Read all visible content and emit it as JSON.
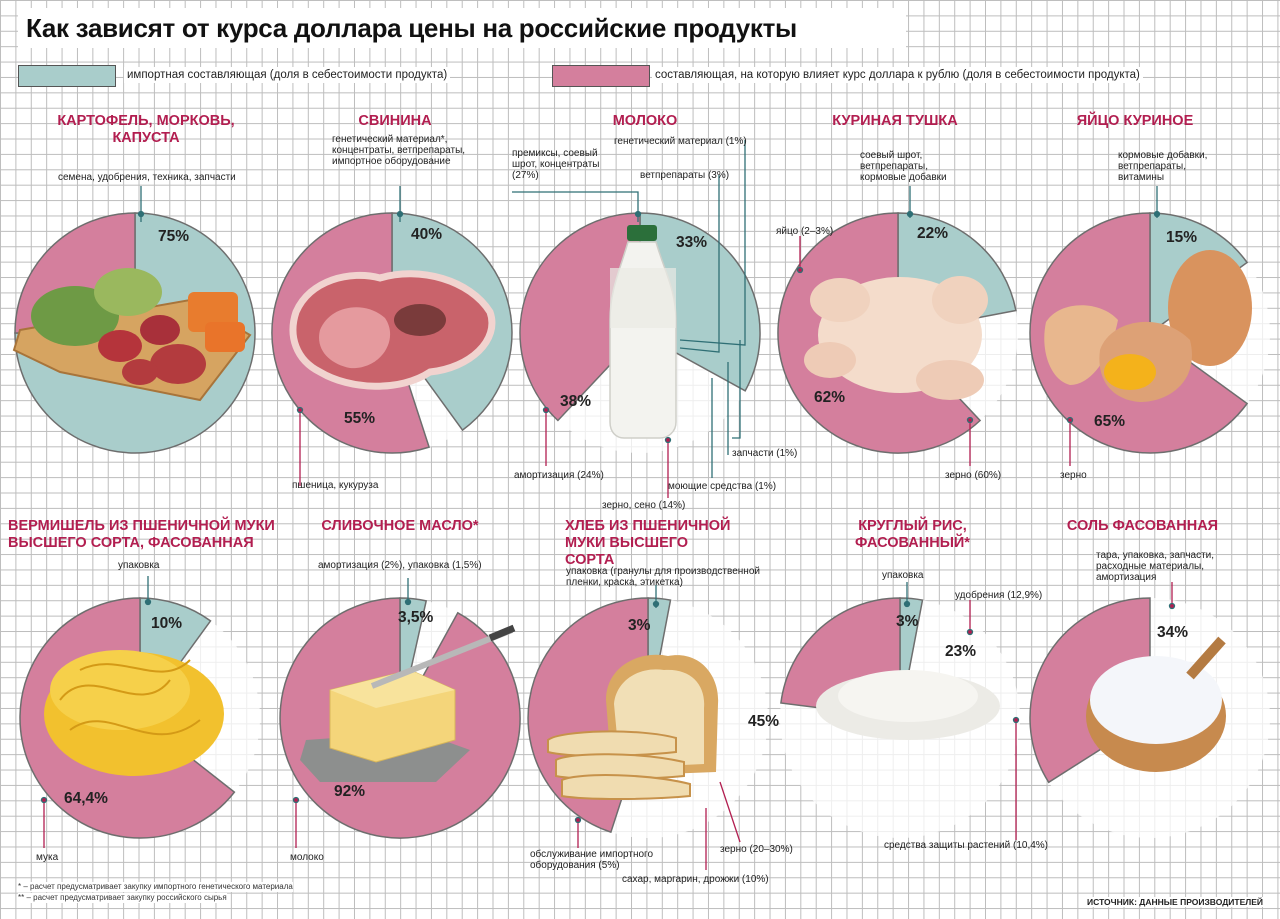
{
  "title": "Как зависят от курса доллара цены на российские продукты",
  "colors": {
    "import": "#a9cdcb",
    "currency": "#d47f9d",
    "stroke": "#6e6e6e",
    "title_red": "#b21e50"
  },
  "legend": {
    "import": "импортная составляющая  (доля в себестоимости продукта)",
    "currency": "составляющая, на которую влияет курс доллара к рублю (доля в себестоимости продукта)"
  },
  "footnotes": {
    "star": "* – расчет предусматривает закупку импортного генетического материала",
    "double_star": "** – расчет предусматривает закупку российского сырья"
  },
  "source": "ИСТОЧНИК: ДАННЫЕ ПРОИЗВОДИТЕЛЕЙ",
  "chart_data": [
    {
      "type": "pie",
      "title": "КАРТОФЕЛЬ, МОРКОВЬ, КАПУСТА",
      "series": [
        {
          "name": "импортная составляющая",
          "value": 75,
          "label": "75%"
        },
        {
          "name": "составляющая, на которую влияет курс доллара",
          "value": 25,
          "label": ""
        }
      ],
      "annotations": [
        "семена, удобрения, техника, запчасти"
      ]
    },
    {
      "type": "pie",
      "title": "СВИНИНА",
      "series": [
        {
          "name": "импортная составляющая",
          "value": 40,
          "label": "40%"
        },
        {
          "name": "составляющая, на которую влияет курс доллара",
          "value": 55,
          "label": "55%"
        }
      ],
      "annotations": [
        "генетический материал*, концентраты, ветпрепараты, импортное оборудование",
        "пшеница, кукуруза"
      ]
    },
    {
      "type": "pie",
      "title": "МОЛОКО",
      "series": [
        {
          "name": "импортная составляющая",
          "value": 33,
          "label": "33%"
        },
        {
          "name": "составляющая, на которую влияет курс доллара",
          "value": 38,
          "label": "38%"
        }
      ],
      "annotations": [
        "премиксы, соевый шрот, концентраты (27%)",
        "генетический материал (1%)",
        "ветпрепараты (3%)",
        "запчасти (1%)",
        "моющие средства (1%)",
        "амортизация (24%)",
        "зерно, сено (14%)"
      ]
    },
    {
      "type": "pie",
      "title": "КУРИНАЯ ТУШКА",
      "series": [
        {
          "name": "импортная составляющая",
          "value": 22,
          "label": "22%"
        },
        {
          "name": "составляющая, на которую влияет курс доллара",
          "value": 62,
          "label": "62%"
        }
      ],
      "annotations": [
        "соевый шрот, ветпрепараты, кормовые добавки",
        "яйцо (2–3%)",
        "зерно (60%)"
      ]
    },
    {
      "type": "pie",
      "title": "ЯЙЦО КУРИНОЕ",
      "series": [
        {
          "name": "импортная составляющая",
          "value": 15,
          "label": "15%"
        },
        {
          "name": "составляющая, на которую влияет курс доллара",
          "value": 65,
          "label": "65%"
        }
      ],
      "annotations": [
        "кормовые добавки, ветпрепараты, витамины",
        "зерно"
      ]
    },
    {
      "type": "pie",
      "title": "ВЕРМИШЕЛЬ ИЗ ПШЕНИЧНОЙ МУКИ ВЫСШЕГО СОРТА, ФАСОВАННАЯ",
      "series": [
        {
          "name": "импортная составляющая",
          "value": 10,
          "label": "10%"
        },
        {
          "name": "составляющая, на которую влияет курс доллара",
          "value": 64.4,
          "label": "64,4%"
        }
      ],
      "annotations": [
        "упаковка",
        "мука"
      ]
    },
    {
      "type": "pie",
      "title": "СЛИВОЧНОЕ МАСЛО*",
      "series": [
        {
          "name": "импортная составляющая",
          "value": 3.5,
          "label": "3,5%"
        },
        {
          "name": "составляющая, на которую влияет курс доллара",
          "value": 92,
          "label": "92%"
        }
      ],
      "annotations": [
        "амортизация (2%), упаковка (1,5%)",
        "молоко"
      ]
    },
    {
      "type": "pie",
      "title": "ХЛЕБ ИЗ ПШЕНИЧНОЙ МУКИ ВЫСШЕГО СОРТА",
      "series": [
        {
          "name": "импортная составляющая",
          "value": 3,
          "label": "3%"
        },
        {
          "name": "составляющая, на которую влияет курс доллара",
          "value": 45,
          "label": "45%"
        }
      ],
      "annotations": [
        "упаковка (гранулы для производственной пленки, краска, этикетка)",
        "обслуживание импортного оборудования (5%)",
        "сахар, маргарин, дрожжи (10%)",
        "зерно (20–30%)"
      ]
    },
    {
      "type": "pie",
      "title": "КРУГЛЫЙ РИС, ФАСОВАННЫЙ*",
      "series": [
        {
          "name": "импортная составляющая",
          "value": 3,
          "label": "3%"
        },
        {
          "name": "составляющая, на которую влияет курс доллара",
          "value": 23,
          "label": "23%"
        }
      ],
      "annotations": [
        "упаковка",
        "удобрения (12,9%)",
        "средства защиты растений (10,4%)"
      ]
    },
    {
      "type": "pie",
      "title": "СОЛЬ ФАСОВАННАЯ",
      "series": [
        {
          "name": "импортная составляющая",
          "value": 0,
          "label": ""
        },
        {
          "name": "составляющая, на которую влияет курс доллара",
          "value": 34,
          "label": "34%"
        }
      ],
      "annotations": [
        "тара, упаковка, запчасти, расходные материалы, амортизация"
      ]
    }
  ]
}
